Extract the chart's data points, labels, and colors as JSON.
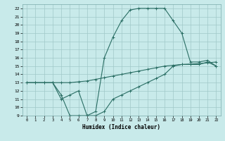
{
  "xlabel": "Humidex (Indice chaleur)",
  "bg_color": "#c8eaea",
  "grid_color": "#a0c8c8",
  "line_color": "#2a6e64",
  "xlim": [
    -0.5,
    22.5
  ],
  "ylim": [
    9,
    22.5
  ],
  "xticks": [
    0,
    1,
    2,
    3,
    4,
    5,
    6,
    7,
    8,
    9,
    10,
    11,
    12,
    13,
    14,
    15,
    16,
    17,
    18,
    19,
    20,
    21,
    22
  ],
  "yticks": [
    9,
    10,
    11,
    12,
    13,
    14,
    15,
    16,
    17,
    18,
    19,
    20,
    21,
    22
  ],
  "line1_x": [
    0,
    1,
    2,
    3,
    4,
    5,
    6,
    7,
    8,
    9,
    10,
    11,
    12,
    13,
    14,
    15,
    16,
    17,
    18,
    19,
    20,
    21,
    22
  ],
  "line1_y": [
    13,
    13,
    13,
    13,
    13,
    13,
    13.1,
    13.2,
    13.4,
    13.6,
    13.8,
    14.0,
    14.2,
    14.4,
    14.6,
    14.8,
    15.0,
    15.1,
    15.2,
    15.25,
    15.3,
    15.4,
    15.5
  ],
  "line2_x": [
    0,
    1,
    2,
    3,
    4,
    5,
    6,
    7,
    8,
    9,
    10,
    11,
    12,
    13,
    14,
    15,
    16,
    17,
    18,
    19,
    20,
    21,
    22
  ],
  "line2_y": [
    13,
    13,
    13,
    13,
    11.5,
    9,
    9,
    9,
    9.5,
    16,
    18.5,
    20.5,
    21.8,
    22,
    22,
    22,
    22,
    20.5,
    19,
    15.5,
    15.5,
    15.7,
    15
  ],
  "line3_x": [
    3,
    4,
    5,
    6,
    7,
    8,
    9,
    10,
    11,
    12,
    13,
    14,
    15,
    16,
    17,
    18,
    19,
    20,
    21,
    22
  ],
  "line3_y": [
    13,
    11,
    11.5,
    12,
    9,
    9,
    9.5,
    11,
    11.5,
    12,
    12.5,
    13,
    13.5,
    14,
    15,
    15.2,
    15.2,
    15.2,
    15.5,
    15
  ]
}
